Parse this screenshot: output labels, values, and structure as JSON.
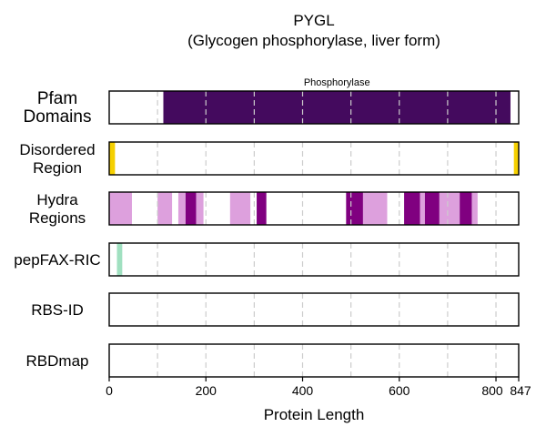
{
  "chart_data": {
    "type": "bar",
    "title": "PYGL",
    "subtitle": "(Glycogen phosphorylase, liver form)",
    "xlabel": "Protein Length",
    "protein_length": 847,
    "xlim": [
      0,
      847
    ],
    "xticks": [
      0,
      200,
      400,
      600,
      800,
      847
    ],
    "grid_x": [
      100,
      200,
      300,
      400,
      500,
      600,
      700,
      800
    ],
    "grid": true,
    "colors": {
      "pfam": "#440a5e",
      "disordered": "#f5d000",
      "hydra_light": "#dda0dd",
      "hydra_dark": "#800080",
      "pepfax": "#a0e0c0",
      "grid": "#cccccc",
      "frame": "#000000"
    },
    "rows": [
      {
        "label": "Pfam Domains",
        "segments": [
          {
            "start": 112,
            "end": 830,
            "color": "#440a5e",
            "name": "Phosphorylase"
          }
        ]
      },
      {
        "label": "Disordered Region",
        "segments": [
          {
            "start": 0,
            "end": 12,
            "color": "#f5d000"
          },
          {
            "start": 837,
            "end": 847,
            "color": "#f5d000"
          }
        ]
      },
      {
        "label": "Hydra Regions",
        "segments": [
          {
            "start": 0,
            "end": 47,
            "color": "#dda0dd"
          },
          {
            "start": 100,
            "end": 130,
            "color": "#dda0dd"
          },
          {
            "start": 143,
            "end": 158,
            "color": "#dda0dd"
          },
          {
            "start": 158,
            "end": 180,
            "color": "#800080"
          },
          {
            "start": 180,
            "end": 195,
            "color": "#dda0dd"
          },
          {
            "start": 250,
            "end": 292,
            "color": "#dda0dd"
          },
          {
            "start": 305,
            "end": 325,
            "color": "#800080"
          },
          {
            "start": 490,
            "end": 525,
            "color": "#800080"
          },
          {
            "start": 525,
            "end": 575,
            "color": "#dda0dd"
          },
          {
            "start": 610,
            "end": 643,
            "color": "#800080"
          },
          {
            "start": 643,
            "end": 653,
            "color": "#dda0dd"
          },
          {
            "start": 653,
            "end": 683,
            "color": "#800080"
          },
          {
            "start": 683,
            "end": 725,
            "color": "#dda0dd"
          },
          {
            "start": 725,
            "end": 750,
            "color": "#800080"
          },
          {
            "start": 750,
            "end": 762,
            "color": "#dda0dd"
          }
        ]
      },
      {
        "label": "pepFAX-RIC",
        "segments": [
          {
            "start": 16,
            "end": 27,
            "color": "#a0e0c0"
          }
        ]
      },
      {
        "label": "RBS-ID",
        "segments": []
      },
      {
        "label": "RBDmap",
        "segments": []
      }
    ]
  }
}
